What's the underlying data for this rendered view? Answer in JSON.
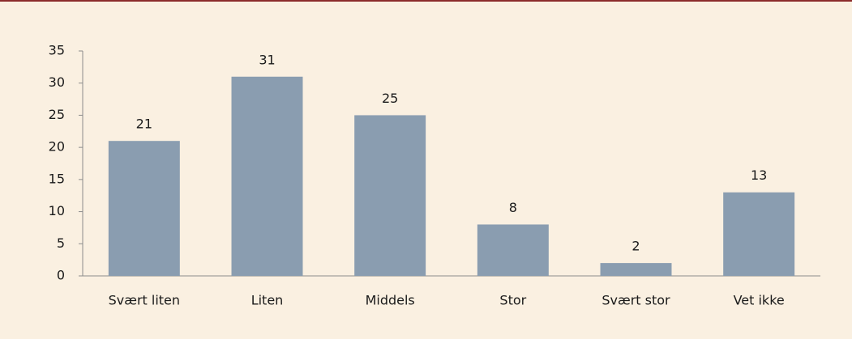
{
  "chart_data": {
    "type": "bar",
    "categories": [
      "Svært liten",
      "Liten",
      "Middels",
      "Stor",
      "Svært stor",
      "Vet ikke"
    ],
    "values": [
      21,
      31,
      25,
      8,
      2,
      13
    ],
    "color": "#8a9db0",
    "ylim": [
      0,
      35
    ],
    "yticks": [
      0,
      5,
      10,
      15,
      20,
      25,
      30,
      35
    ],
    "grid": false
  }
}
